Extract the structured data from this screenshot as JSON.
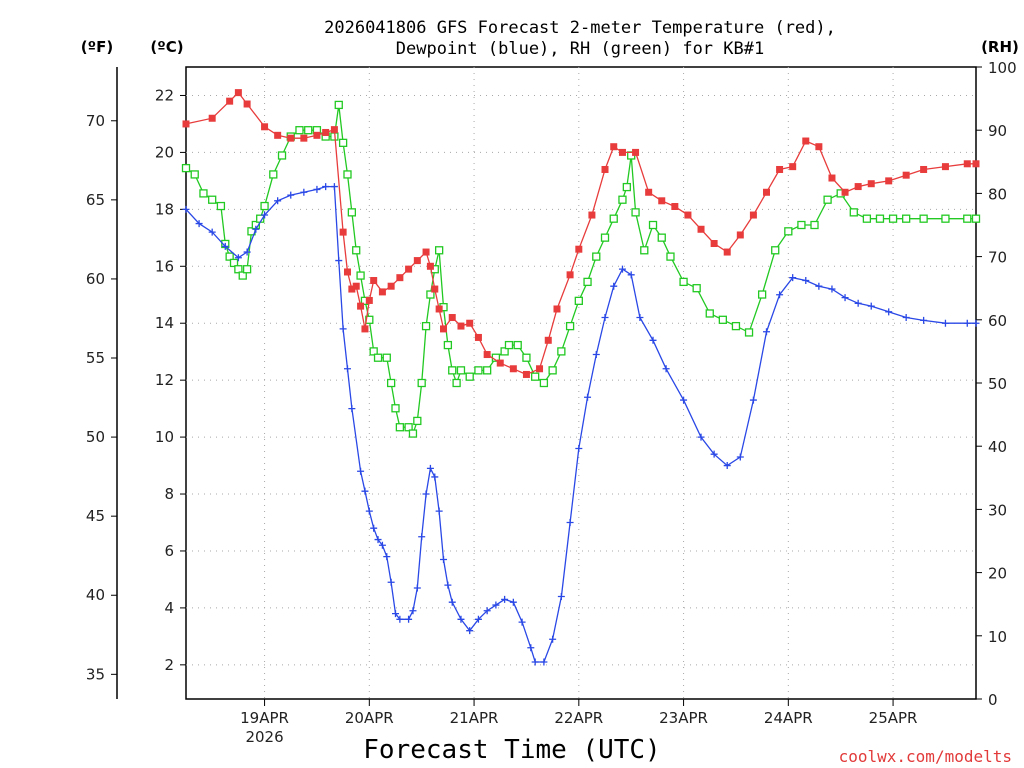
{
  "chart_data": {
    "type": "line",
    "title_line1": "2026041806 GFS Forecast 2-meter Temperature (red),",
    "title_line2": "Dewpoint (blue), RH (green) for KB#1",
    "xlabel": "Forecast Time (UTC)",
    "credit": "coolwx.com/modelts",
    "units": {
      "fahrenheit": "(ºF)",
      "celsius": "(ºC)",
      "rh": "(RH)"
    },
    "x_hours_range": [
      6,
      187
    ],
    "x_ticks": [
      {
        "hour": 24,
        "label": "19APR",
        "sub": "2026"
      },
      {
        "hour": 48,
        "label": "20APR"
      },
      {
        "hour": 72,
        "label": "21APR"
      },
      {
        "hour": 96,
        "label": "22APR"
      },
      {
        "hour": 120,
        "label": "23APR"
      },
      {
        "hour": 144,
        "label": "24APR"
      },
      {
        "hour": 168,
        "label": "25APR"
      }
    ],
    "ylim_c": [
      0.8,
      23.0
    ],
    "ylim_rh": [
      0,
      100
    ],
    "celsius_ticks": [
      "2",
      "4",
      "6",
      "8",
      "10",
      "12",
      "14",
      "16",
      "18",
      "20",
      "22"
    ],
    "fahrenheit_ticks": [
      "35",
      "40",
      "45",
      "50",
      "55",
      "60",
      "65",
      "70"
    ],
    "rh_ticks": [
      "0",
      "10",
      "20",
      "30",
      "40",
      "50",
      "60",
      "70",
      "80",
      "90",
      "100"
    ],
    "series": [
      {
        "name": "2-meter Temperature",
        "color": "#e83c3c",
        "marker": "filled-square",
        "axis": "celsius",
        "points": [
          [
            6,
            21.0
          ],
          [
            12,
            21.2
          ],
          [
            16,
            21.8
          ],
          [
            18,
            22.1
          ],
          [
            20,
            21.7
          ],
          [
            24,
            20.9
          ],
          [
            27,
            20.6
          ],
          [
            30,
            20.5
          ],
          [
            33,
            20.5
          ],
          [
            36,
            20.6
          ],
          [
            38,
            20.7
          ],
          [
            40,
            20.8
          ],
          [
            42,
            17.2
          ],
          [
            43,
            15.8
          ],
          [
            44,
            15.2
          ],
          [
            45,
            15.3
          ],
          [
            46,
            14.6
          ],
          [
            47,
            13.8
          ],
          [
            48,
            14.8
          ],
          [
            49,
            15.5
          ],
          [
            51,
            15.1
          ],
          [
            53,
            15.3
          ],
          [
            55,
            15.6
          ],
          [
            57,
            15.9
          ],
          [
            59,
            16.2
          ],
          [
            61,
            16.5
          ],
          [
            62,
            16.0
          ],
          [
            63,
            15.2
          ],
          [
            64,
            14.5
          ],
          [
            65,
            13.8
          ],
          [
            67,
            14.2
          ],
          [
            69,
            13.9
          ],
          [
            71,
            14.0
          ],
          [
            73,
            13.5
          ],
          [
            75,
            12.9
          ],
          [
            78,
            12.6
          ],
          [
            81,
            12.4
          ],
          [
            84,
            12.2
          ],
          [
            87,
            12.4
          ],
          [
            89,
            13.4
          ],
          [
            91,
            14.5
          ],
          [
            94,
            15.7
          ],
          [
            96,
            16.6
          ],
          [
            99,
            17.8
          ],
          [
            102,
            19.4
          ],
          [
            104,
            20.2
          ],
          [
            106,
            20.0
          ],
          [
            109,
            20.0
          ],
          [
            112,
            18.6
          ],
          [
            115,
            18.3
          ],
          [
            118,
            18.1
          ],
          [
            121,
            17.8
          ],
          [
            124,
            17.3
          ],
          [
            127,
            16.8
          ],
          [
            130,
            16.5
          ],
          [
            133,
            17.1
          ],
          [
            136,
            17.8
          ],
          [
            139,
            18.6
          ],
          [
            142,
            19.4
          ],
          [
            145,
            19.5
          ],
          [
            148,
            20.4
          ],
          [
            151,
            20.2
          ],
          [
            154,
            19.1
          ],
          [
            157,
            18.6
          ],
          [
            160,
            18.8
          ],
          [
            163,
            18.9
          ],
          [
            167,
            19.0
          ],
          [
            171,
            19.2
          ],
          [
            175,
            19.4
          ],
          [
            180,
            19.5
          ],
          [
            185,
            19.6
          ],
          [
            187,
            19.6
          ]
        ]
      },
      {
        "name": "Dewpoint",
        "color": "#2a48e6",
        "marker": "plus",
        "axis": "celsius",
        "points": [
          [
            6,
            18.0
          ],
          [
            9,
            17.5
          ],
          [
            12,
            17.2
          ],
          [
            15,
            16.7
          ],
          [
            18,
            16.3
          ],
          [
            20,
            16.5
          ],
          [
            22,
            17.3
          ],
          [
            24,
            17.8
          ],
          [
            27,
            18.3
          ],
          [
            30,
            18.5
          ],
          [
            33,
            18.6
          ],
          [
            36,
            18.7
          ],
          [
            38,
            18.8
          ],
          [
            40,
            18.8
          ],
          [
            41,
            16.2
          ],
          [
            42,
            13.8
          ],
          [
            43,
            12.4
          ],
          [
            44,
            11.0
          ],
          [
            46,
            8.8
          ],
          [
            47,
            8.1
          ],
          [
            48,
            7.4
          ],
          [
            49,
            6.8
          ],
          [
            50,
            6.4
          ],
          [
            51,
            6.2
          ],
          [
            52,
            5.8
          ],
          [
            53,
            4.9
          ],
          [
            54,
            3.8
          ],
          [
            55,
            3.6
          ],
          [
            57,
            3.6
          ],
          [
            58,
            3.9
          ],
          [
            59,
            4.7
          ],
          [
            60,
            6.5
          ],
          [
            61,
            8.0
          ],
          [
            62,
            8.9
          ],
          [
            63,
            8.6
          ],
          [
            64,
            7.4
          ],
          [
            65,
            5.7
          ],
          [
            66,
            4.8
          ],
          [
            67,
            4.2
          ],
          [
            69,
            3.6
          ],
          [
            71,
            3.2
          ],
          [
            73,
            3.6
          ],
          [
            75,
            3.9
          ],
          [
            77,
            4.1
          ],
          [
            79,
            4.3
          ],
          [
            81,
            4.2
          ],
          [
            83,
            3.5
          ],
          [
            85,
            2.6
          ],
          [
            86,
            2.1
          ],
          [
            88,
            2.1
          ],
          [
            90,
            2.9
          ],
          [
            92,
            4.4
          ],
          [
            94,
            7.0
          ],
          [
            96,
            9.6
          ],
          [
            98,
            11.4
          ],
          [
            100,
            12.9
          ],
          [
            102,
            14.2
          ],
          [
            104,
            15.3
          ],
          [
            106,
            15.9
          ],
          [
            108,
            15.7
          ],
          [
            110,
            14.2
          ],
          [
            113,
            13.4
          ],
          [
            116,
            12.4
          ],
          [
            120,
            11.3
          ],
          [
            124,
            10.0
          ],
          [
            127,
            9.4
          ],
          [
            130,
            9.0
          ],
          [
            133,
            9.3
          ],
          [
            136,
            11.3
          ],
          [
            139,
            13.7
          ],
          [
            142,
            15.0
          ],
          [
            145,
            15.6
          ],
          [
            148,
            15.5
          ],
          [
            151,
            15.3
          ],
          [
            154,
            15.2
          ],
          [
            157,
            14.9
          ],
          [
            160,
            14.7
          ],
          [
            163,
            14.6
          ],
          [
            167,
            14.4
          ],
          [
            171,
            14.2
          ],
          [
            175,
            14.1
          ],
          [
            180,
            14.0
          ],
          [
            185,
            14.0
          ],
          [
            187,
            14.0
          ]
        ]
      },
      {
        "name": "RH",
        "color": "#22c922",
        "marker": "open-square",
        "axis": "rh",
        "points": [
          [
            6,
            84
          ],
          [
            8,
            83
          ],
          [
            10,
            80
          ],
          [
            12,
            79
          ],
          [
            14,
            78
          ],
          [
            15,
            72
          ],
          [
            16,
            70
          ],
          [
            17,
            69
          ],
          [
            18,
            68
          ],
          [
            19,
            67
          ],
          [
            20,
            68
          ],
          [
            21,
            74
          ],
          [
            22,
            75
          ],
          [
            23,
            76
          ],
          [
            24,
            78
          ],
          [
            26,
            83
          ],
          [
            28,
            86
          ],
          [
            30,
            89
          ],
          [
            32,
            90
          ],
          [
            34,
            90
          ],
          [
            36,
            90
          ],
          [
            38,
            89
          ],
          [
            40,
            89
          ],
          [
            41,
            94
          ],
          [
            42,
            88
          ],
          [
            43,
            83
          ],
          [
            44,
            77
          ],
          [
            45,
            71
          ],
          [
            46,
            67
          ],
          [
            47,
            63
          ],
          [
            48,
            60
          ],
          [
            49,
            55
          ],
          [
            50,
            54
          ],
          [
            52,
            54
          ],
          [
            53,
            50
          ],
          [
            54,
            46
          ],
          [
            55,
            43
          ],
          [
            57,
            43
          ],
          [
            58,
            42
          ],
          [
            59,
            44
          ],
          [
            60,
            50
          ],
          [
            61,
            59
          ],
          [
            62,
            64
          ],
          [
            63,
            68
          ],
          [
            64,
            71
          ],
          [
            65,
            62
          ],
          [
            66,
            56
          ],
          [
            67,
            52
          ],
          [
            68,
            50
          ],
          [
            69,
            52
          ],
          [
            71,
            51
          ],
          [
            73,
            52
          ],
          [
            75,
            52
          ],
          [
            77,
            54
          ],
          [
            79,
            55
          ],
          [
            80,
            56
          ],
          [
            82,
            56
          ],
          [
            84,
            54
          ],
          [
            86,
            51
          ],
          [
            88,
            50
          ],
          [
            90,
            52
          ],
          [
            92,
            55
          ],
          [
            94,
            59
          ],
          [
            96,
            63
          ],
          [
            98,
            66
          ],
          [
            100,
            70
          ],
          [
            102,
            73
          ],
          [
            104,
            76
          ],
          [
            106,
            79
          ],
          [
            107,
            81
          ],
          [
            108,
            86
          ],
          [
            109,
            77
          ],
          [
            111,
            71
          ],
          [
            113,
            75
          ],
          [
            115,
            73
          ],
          [
            117,
            70
          ],
          [
            120,
            66
          ],
          [
            123,
            65
          ],
          [
            126,
            61
          ],
          [
            129,
            60
          ],
          [
            132,
            59
          ],
          [
            135,
            58
          ],
          [
            138,
            64
          ],
          [
            141,
            71
          ],
          [
            144,
            74
          ],
          [
            147,
            75
          ],
          [
            150,
            75
          ],
          [
            153,
            79
          ],
          [
            156,
            80
          ],
          [
            159,
            77
          ],
          [
            162,
            76
          ],
          [
            165,
            76
          ],
          [
            168,
            76
          ],
          [
            171,
            76
          ],
          [
            175,
            76
          ],
          [
            180,
            76
          ],
          [
            185,
            76
          ],
          [
            187,
            76
          ]
        ]
      }
    ]
  }
}
